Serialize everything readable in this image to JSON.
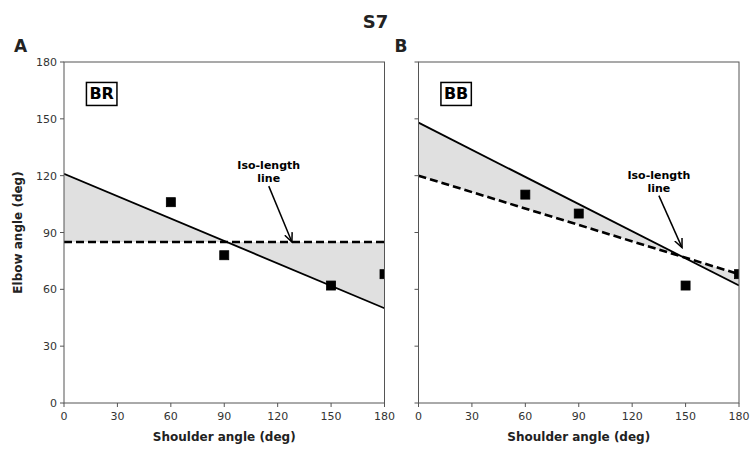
{
  "chart_data": [
    {
      "type": "line",
      "title": "S7",
      "panel_label": "A",
      "inset_label": "BR",
      "x_label": "Shoulder angle (deg)",
      "y_label": "Elbow angle (deg)",
      "xlim": [
        0,
        180
      ],
      "ylim": [
        0,
        180
      ],
      "xticks": [
        0,
        30,
        60,
        90,
        120,
        150,
        180
      ],
      "yticks": [
        0,
        30,
        60,
        90,
        120,
        150,
        180
      ],
      "grid": false,
      "series": [
        {
          "type": "fill_between",
          "color": "#e0e0e0",
          "x": [
            0,
            180
          ],
          "values": [
            121,
            50
          ],
          "values2": [
            85,
            85
          ]
        },
        {
          "type": "line",
          "line_style": "solid",
          "color": "black",
          "x": [
            0,
            180
          ],
          "values": [
            121,
            50
          ]
        },
        {
          "type": "line",
          "line_style": "dashed",
          "color": "black",
          "x": [
            0,
            180
          ],
          "values": [
            85,
            85
          ]
        },
        {
          "type": "scatter",
          "marker": "square",
          "color": "black",
          "x": [
            60,
            90,
            150,
            180
          ],
          "values": [
            106,
            78,
            62,
            68
          ]
        }
      ],
      "annotations": [
        {
          "text": "Iso-length\nline",
          "xy": [
            128,
            85
          ],
          "xytext": [
            115,
            115
          ]
        }
      ]
    },
    {
      "type": "line",
      "panel_label": "B",
      "inset_label": "BB",
      "x_label": "Shoulder angle (deg)",
      "xlim": [
        0,
        180
      ],
      "ylim": [
        0,
        180
      ],
      "xticks": [
        0,
        30,
        60,
        90,
        120,
        150,
        180
      ],
      "yticks": [
        0,
        30,
        60,
        90,
        120,
        150,
        180
      ],
      "grid": false,
      "tick_labels": "x",
      "series": [
        {
          "type": "fill_between",
          "color": "#e0e0e0",
          "x": [
            0,
            180
          ],
          "values": [
            148,
            62
          ],
          "values2": [
            120,
            68
          ]
        },
        {
          "type": "line",
          "line_style": "solid",
          "color": "black",
          "x": [
            0,
            180
          ],
          "values": [
            148,
            62
          ]
        },
        {
          "type": "line",
          "line_style": "dashed",
          "color": "black",
          "x": [
            0,
            180
          ],
          "values": [
            120,
            68
          ]
        },
        {
          "type": "scatter",
          "marker": "square",
          "color": "black",
          "x": [
            60,
            90,
            150,
            180
          ],
          "values": [
            110,
            100,
            62,
            68
          ]
        }
      ],
      "annotations": [
        {
          "text": "Iso-length\nline",
          "xy": [
            148,
            82
          ],
          "xytext": [
            135,
            110
          ]
        }
      ]
    }
  ]
}
